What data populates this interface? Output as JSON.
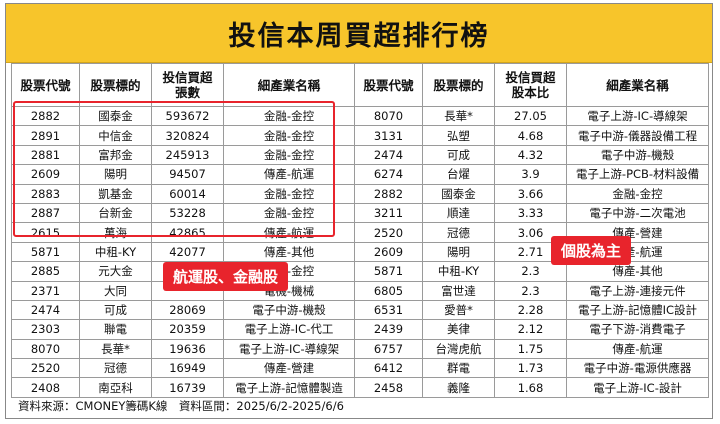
{
  "title": "投信本周買超排行榜",
  "headers": [
    "股票代號",
    "股票標的",
    "投信買超\n張數",
    "細產業名稱",
    "股票代號",
    "股票標的",
    "投信買超\n股本比",
    "細產業名稱"
  ],
  "rows": [
    [
      "2882",
      "國泰金",
      "593672",
      "金融-金控",
      "8070",
      "長華*",
      "27.05",
      "電子上游-IC-導線架"
    ],
    [
      "2891",
      "中信金",
      "320824",
      "金融-金控",
      "3131",
      "弘塑",
      "4.68",
      "電子中游-儀器設備工程"
    ],
    [
      "2881",
      "富邦金",
      "245913",
      "金融-金控",
      "2474",
      "可成",
      "4.32",
      "電子中游-機殼"
    ],
    [
      "2609",
      "陽明",
      "94507",
      "傳產-航運",
      "6274",
      "台燿",
      "3.9",
      "電子上游-PCB-材料設備"
    ],
    [
      "2883",
      "凱基金",
      "60014",
      "金融-金控",
      "2882",
      "國泰金",
      "3.66",
      "金融-金控"
    ],
    [
      "2887",
      "台新金",
      "53228",
      "金融-金控",
      "3211",
      "順達",
      "3.33",
      "電子中游-二次電池"
    ],
    [
      "2615",
      "萬海",
      "42865",
      "傳產-航運",
      "2520",
      "冠德",
      "3.06",
      "傳產-營建"
    ],
    [
      "5871",
      "中租-KY",
      "42077",
      "傳產-其他",
      "2609",
      "陽明",
      "2.71",
      "傳產-航運"
    ],
    [
      "2885",
      "元大金",
      "",
      "金融-金控",
      "5871",
      "中租-KY",
      "2.3",
      "傳產-其他"
    ],
    [
      "2371",
      "大同",
      "",
      "電機-機械",
      "6805",
      "富世達",
      "2.3",
      "電子上游-連接元件"
    ],
    [
      "2474",
      "可成",
      "28069",
      "電子中游-機殼",
      "6531",
      "愛普*",
      "2.28",
      "電子上游-記憶體IC設計"
    ],
    [
      "2303",
      "聯電",
      "20359",
      "電子上游-IC-代工",
      "2439",
      "美律",
      "2.12",
      "電子下游-消費電子"
    ],
    [
      "8070",
      "長華*",
      "19636",
      "電子上游-IC-導線架",
      "6757",
      "台灣虎航",
      "1.75",
      "傳產-航運"
    ],
    [
      "2520",
      "冠德",
      "16949",
      "傳產-營建",
      "6412",
      "群電",
      "1.73",
      "電子中游-電源供應器"
    ],
    [
      "2408",
      "南亞科",
      "16739",
      "電子上游-記憶體製造",
      "2458",
      "義隆",
      "1.68",
      "電子上游-IC-設計"
    ]
  ],
  "source": "資料來源：CMONEY籌碼K線　資料區間：2025/6/2-2025/6/6",
  "callouts": {
    "left": "航運股、金融股",
    "right": "個股為主"
  },
  "colors": {
    "title_bg": "#f7c52b",
    "highlight": "#e8242c"
  }
}
